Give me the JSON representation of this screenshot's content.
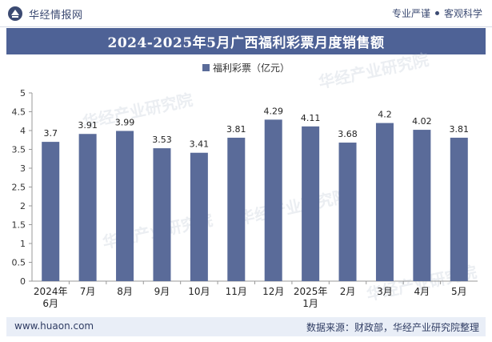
{
  "header": {
    "brand": "华经情报网",
    "slogan_left": "专业严谨",
    "slogan_right": "客观科学"
  },
  "watermark": "华经产业研究院",
  "footer": {
    "site": "www.huaon.com",
    "source": "数据来源：财政部，华经产业研究院整理"
  },
  "colors": {
    "bar": "#5a6b99",
    "title_bg": "#4e6296",
    "footer_bg": "#e9eef7"
  },
  "chart_data": {
    "type": "bar",
    "title": "2024-2025年5月广西福利彩票月度销售额",
    "categories": [
      "2024年\n6月",
      "7月",
      "8月",
      "9月",
      "10月",
      "11月",
      "12月",
      "2025年\n1月",
      "2月",
      "3月",
      "4月",
      "5月"
    ],
    "series": [
      {
        "name": "福利彩票（亿元）",
        "values": [
          3.7,
          3.91,
          3.99,
          3.53,
          3.41,
          3.81,
          4.29,
          4.11,
          3.68,
          4.2,
          4.02,
          3.81
        ],
        "labels": [
          "3.7",
          "3.91",
          "3.99",
          "3.53",
          "3.41",
          "3.81",
          "4.29",
          "4.11",
          "3.68",
          "4.2",
          "4.02",
          "3.81"
        ]
      }
    ],
    "ylim": [
      0,
      5
    ],
    "yticks": [
      "0",
      "0.5",
      "1",
      "1.5",
      "2",
      "2.5",
      "3",
      "3.5",
      "4",
      "4.5",
      "5"
    ],
    "grid": false,
    "legend": "top-center"
  }
}
